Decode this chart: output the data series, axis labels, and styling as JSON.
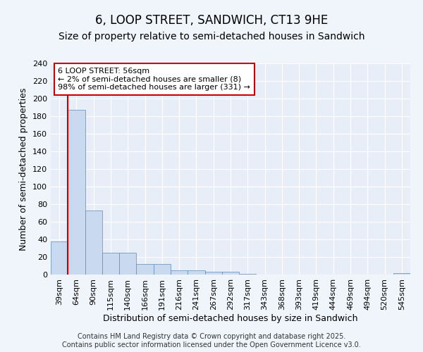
{
  "title": "6, LOOP STREET, SANDWICH, CT13 9HE",
  "subtitle": "Size of property relative to semi-detached houses in Sandwich",
  "xlabel": "Distribution of semi-detached houses by size in Sandwich",
  "ylabel": "Number of semi-detached properties",
  "categories": [
    "39sqm",
    "64sqm",
    "90sqm",
    "115sqm",
    "140sqm",
    "166sqm",
    "191sqm",
    "216sqm",
    "241sqm",
    "267sqm",
    "292sqm",
    "317sqm",
    "343sqm",
    "368sqm",
    "393sqm",
    "419sqm",
    "444sqm",
    "469sqm",
    "494sqm",
    "520sqm",
    "545sqm"
  ],
  "values": [
    38,
    187,
    73,
    25,
    25,
    12,
    12,
    5,
    5,
    3,
    3,
    1,
    0,
    0,
    0,
    0,
    0,
    0,
    0,
    0,
    2
  ],
  "bar_color": "#c9d9f0",
  "bar_edge_color": "#5b8db8",
  "annotation_text": "6 LOOP STREET: 56sqm\n← 2% of semi-detached houses are smaller (8)\n98% of semi-detached houses are larger (331) →",
  "annotation_box_color": "white",
  "annotation_box_edge": "#cc0000",
  "red_line_color": "#cc0000",
  "red_line_x": 0.5,
  "ylim": [
    0,
    240
  ],
  "yticks": [
    0,
    20,
    40,
    60,
    80,
    100,
    120,
    140,
    160,
    180,
    200,
    220,
    240
  ],
  "background_color": "#f0f4fb",
  "plot_background": "#e8eef8",
  "grid_color": "#ffffff",
  "title_fontsize": 12,
  "subtitle_fontsize": 10,
  "label_fontsize": 9,
  "tick_fontsize": 8,
  "annot_fontsize": 8,
  "footer_text": "Contains HM Land Registry data © Crown copyright and database right 2025.\nContains public sector information licensed under the Open Government Licence v3.0.",
  "footer_fontsize": 7
}
